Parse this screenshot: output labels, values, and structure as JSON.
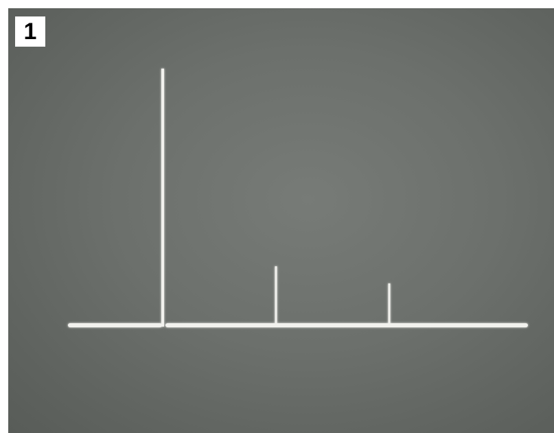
{
  "figure": {
    "label": "1"
  },
  "trace": {
    "color": "#f2f2ee",
    "peaks": [
      {
        "relative_height": 1.0
      },
      {
        "relative_height": 0.23
      },
      {
        "relative_height": 0.16
      }
    ]
  }
}
